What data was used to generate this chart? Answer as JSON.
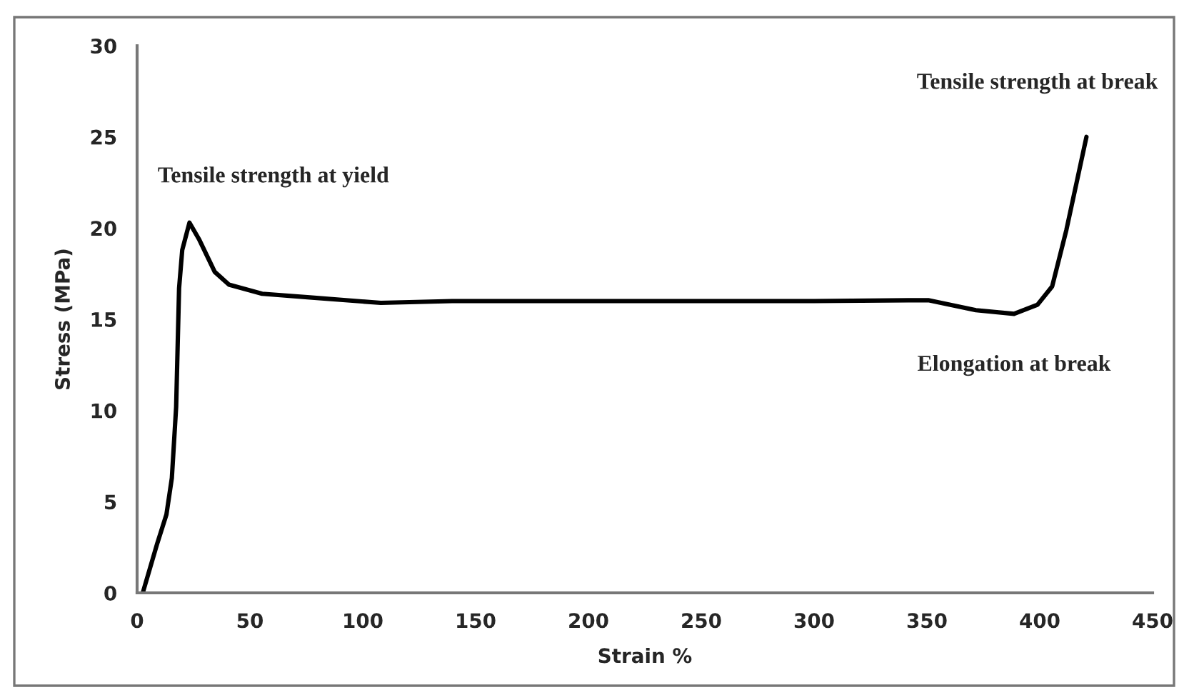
{
  "chart_data": {
    "type": "line",
    "xlabel": "Strain %",
    "ylabel": "Stress (MPa)",
    "xlim": [
      0,
      450
    ],
    "xticks": [
      0,
      50,
      100,
      150,
      200,
      250,
      300,
      350,
      400,
      450
    ],
    "ylim": [
      0,
      30
    ],
    "yticks": [
      0,
      5,
      10,
      15,
      20,
      25,
      30
    ],
    "grid": false,
    "legend": false,
    "marker": "none",
    "line_style": "solid",
    "series": [
      {
        "color": "#000000",
        "x": [
          2.5,
          8.9,
          13,
          15.4,
          17.3,
          18.6,
          20,
          23.2,
          27.4,
          34.4,
          40.7,
          55.4,
          76.5,
          108,
          139.6,
          200,
          300,
          350.6,
          371.7,
          388.6,
          399,
          405.5,
          411.8,
          420.7
        ],
        "values": [
          0,
          2.7,
          4.3,
          6.3,
          10.2,
          16.7,
          18.8,
          20.3,
          19.4,
          17.6,
          16.9,
          16.4,
          16.2,
          15.9,
          16,
          16,
          16,
          16.05,
          15.5,
          15.3,
          15.8,
          16.8,
          19.9,
          25
        ]
      }
    ],
    "annotations": [
      {
        "text": "Tensile strength at yield",
        "x": 23.2,
        "y": 20.3
      },
      {
        "text": "Tensile strength at break",
        "x": 420.7,
        "y": 25
      },
      {
        "text": "Elongation at break",
        "x": 388.6,
        "y": 15.3
      }
    ]
  }
}
